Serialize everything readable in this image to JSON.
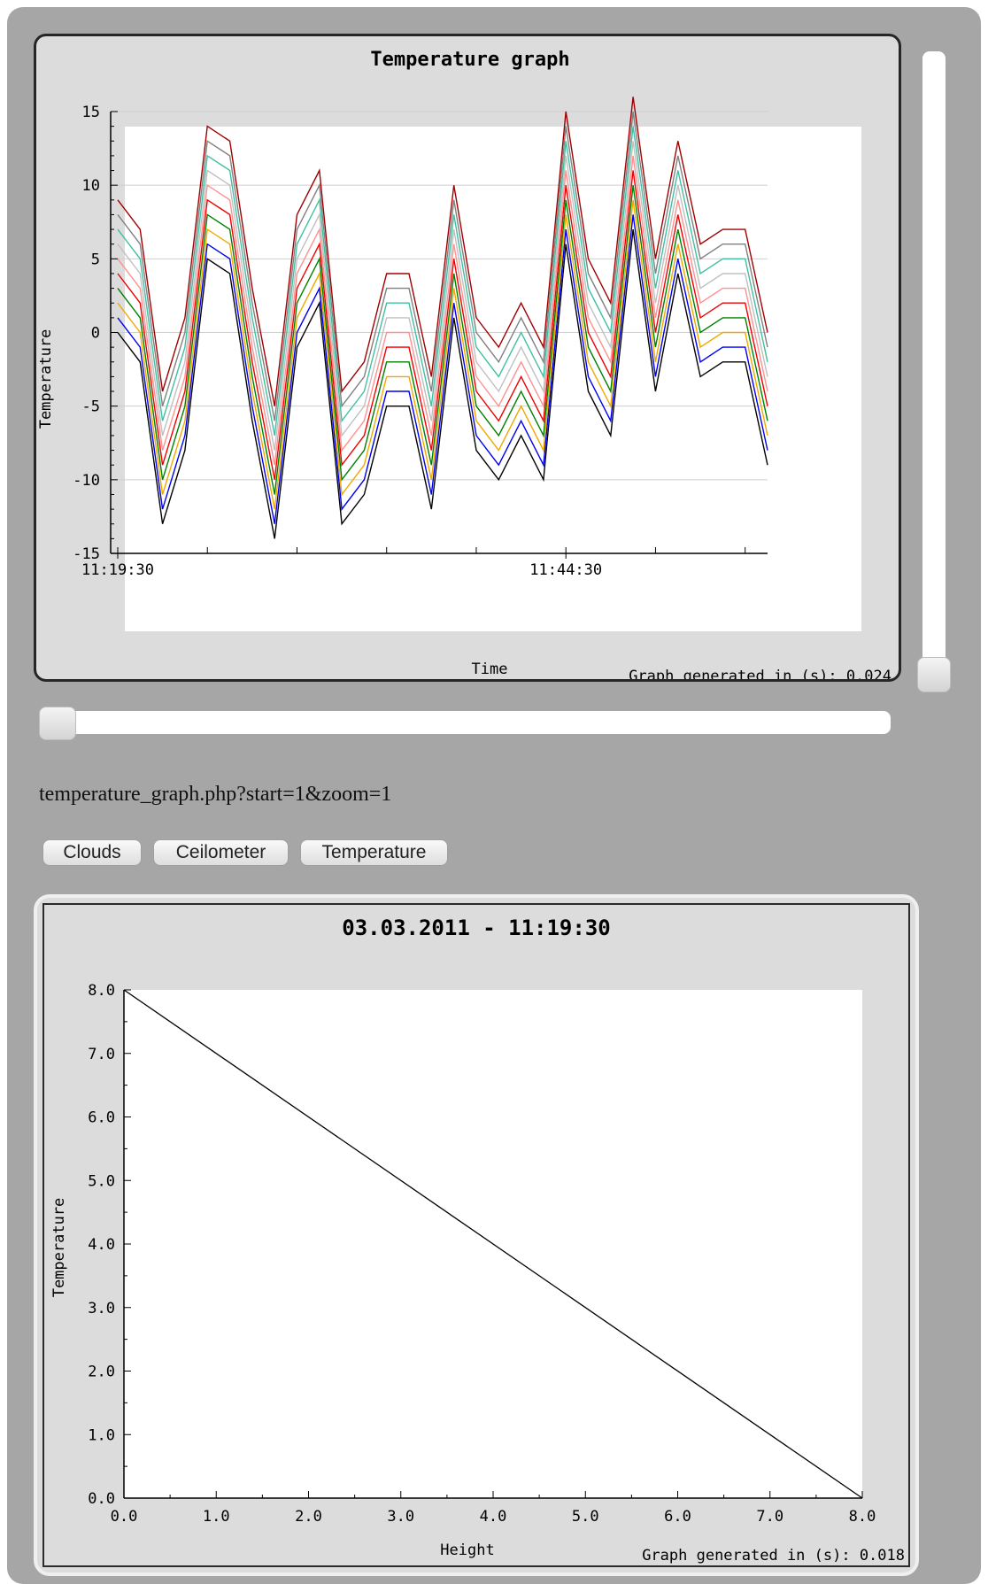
{
  "url_line": "temperature_graph.php?start=1&zoom=1",
  "buttons": [
    "Clouds",
    "Ceilometer",
    "Temperature"
  ],
  "chart_data": [
    {
      "type": "line",
      "title": "Temperature graph",
      "xlabel": "Time",
      "ylabel": "Temperature",
      "ylim": [
        -15,
        15
      ],
      "yticks": [
        15,
        10,
        5,
        0,
        -5,
        -10,
        -15
      ],
      "x_tick_labels": [
        "11:19:30",
        "11:44:30"
      ],
      "grid": true,
      "footer": "Graph generated in (s): 0.024",
      "base": [
        0,
        -2,
        -13,
        -8,
        5,
        4,
        -6,
        -14,
        -1,
        2,
        -13,
        -11,
        -5,
        -5,
        -12,
        1,
        -8,
        -10,
        -7,
        -10,
        6,
        -4,
        -7,
        7,
        -4,
        4,
        -3,
        -2,
        -2,
        -9
      ],
      "offsets": [
        0,
        1,
        2,
        3,
        4,
        5,
        6,
        7,
        8,
        9
      ],
      "colors": [
        "#000000",
        "#0000ee",
        "#f0a800",
        "#008000",
        "#ee0000",
        "#ff9090",
        "#c0c0c0",
        "#40c0a0",
        "#808080",
        "#a00000"
      ]
    },
    {
      "type": "line",
      "title": "03.03.2011 - 11:19:30",
      "xlabel": "Height",
      "ylabel": "Temperature",
      "xlim": [
        0,
        8
      ],
      "ylim": [
        0,
        8
      ],
      "xticks": [
        "0.0",
        "1.0",
        "2.0",
        "3.0",
        "4.0",
        "5.0",
        "6.0",
        "7.0",
        "8.0"
      ],
      "yticks": [
        "8.0",
        "7.0",
        "6.0",
        "5.0",
        "4.0",
        "3.0",
        "2.0",
        "1.0",
        "0.0"
      ],
      "series": [
        {
          "x": [
            0,
            8
          ],
          "y": [
            8,
            0
          ]
        }
      ],
      "grid": false,
      "footer": "Graph generated in (s): 0.018"
    }
  ]
}
